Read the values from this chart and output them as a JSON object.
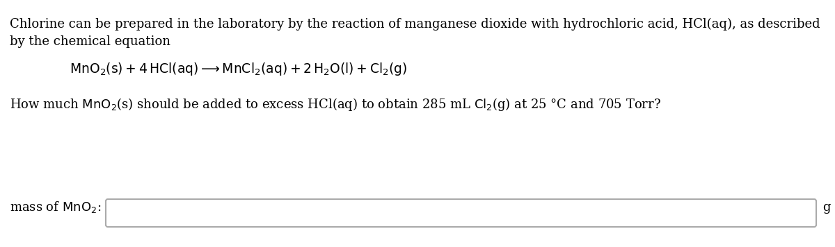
{
  "background_color": "#ffffff",
  "text_color": "#000000",
  "font_size": 13.0,
  "font_family": "DejaVu Serif",
  "line1": "Chlorine can be prepared in the laboratory by the reaction of manganese dioxide with hydrochloric acid, HCl(aq), as described",
  "line2": "by the chemical equation",
  "question": "How much MnO$_2$(s) should be added to excess HCl(aq) to obtain 285 mL Cl$_2$(g) at 25 °C and 705 Torr?",
  "label": "mass of MnO$_2$:",
  "unit": "g",
  "box_edge_color": "#aaaaaa",
  "box_fill_color": "#ffffff",
  "fig_width": 12.0,
  "fig_height": 3.56,
  "dpi": 100
}
